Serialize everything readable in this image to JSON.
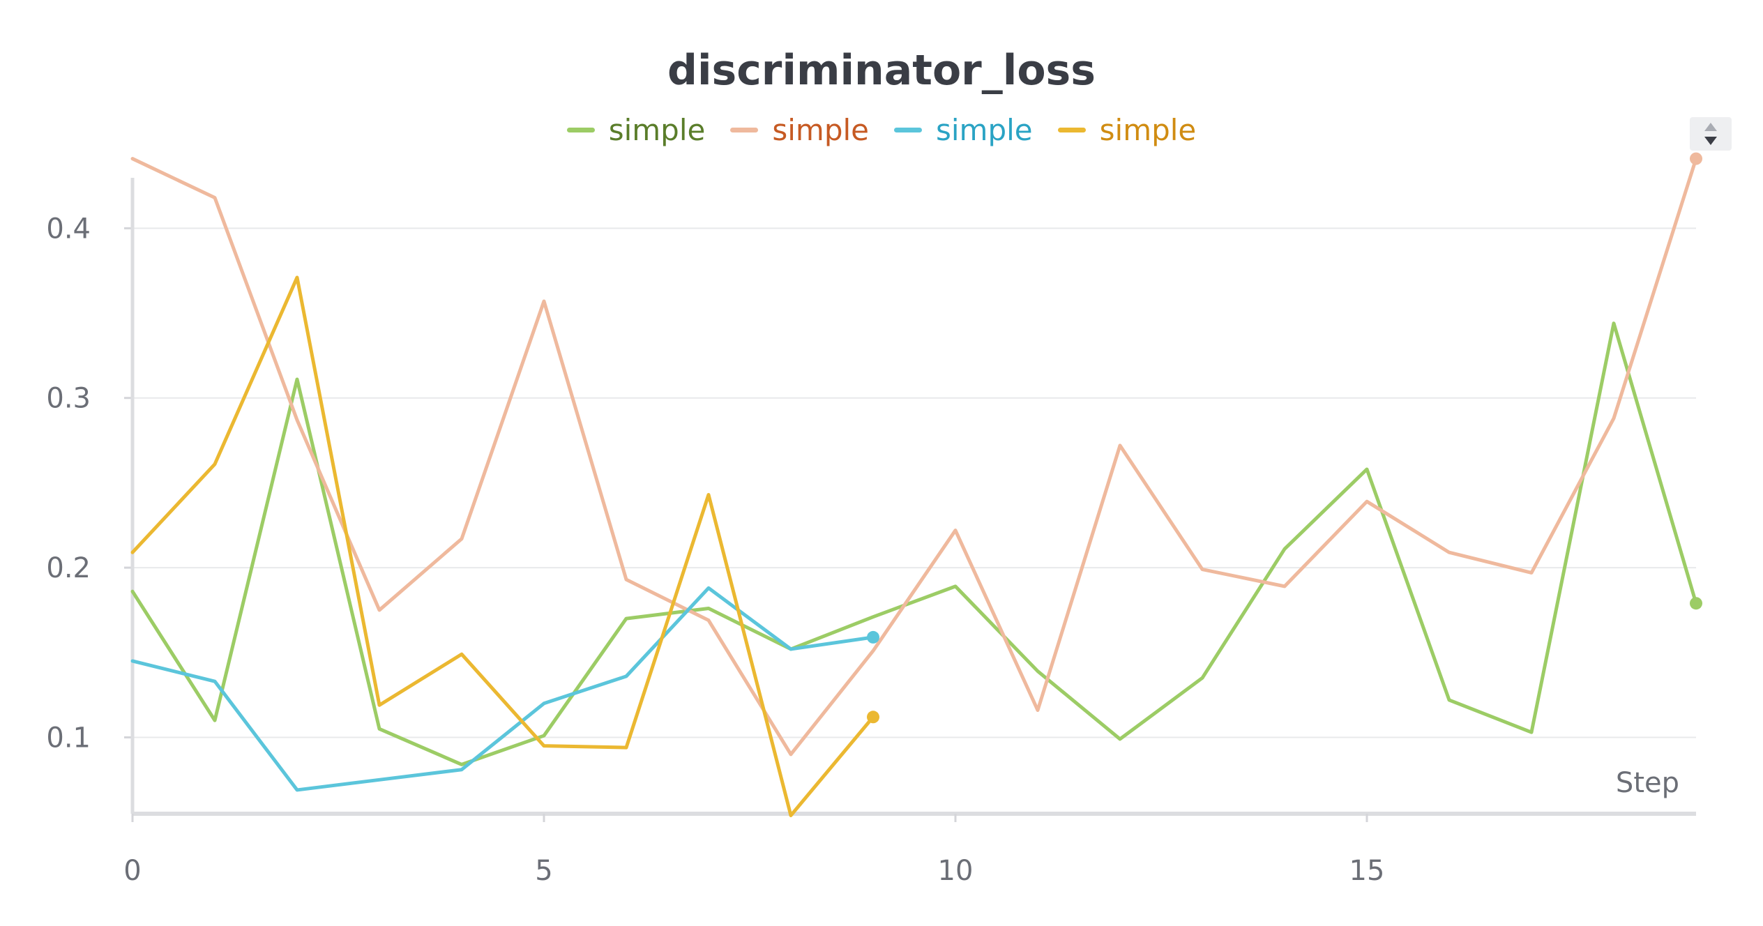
{
  "chart_data": {
    "type": "line",
    "title": "discriminator_loss",
    "xlabel": "Step",
    "ylabel": "",
    "xlim": [
      0,
      19
    ],
    "ylim": [
      0.055,
      0.44
    ],
    "xticks": [
      0,
      5,
      10,
      15
    ],
    "yticks": [
      0.1,
      0.2,
      0.3,
      0.4
    ],
    "xtick_labels": [
      "0",
      "5",
      "10",
      "15"
    ],
    "ytick_labels": [
      "0.1",
      "0.2",
      "0.3",
      "0.4"
    ],
    "grid": true,
    "legend_position": "top-center",
    "series": [
      {
        "name": "simple",
        "color": "#9ccc65",
        "label_color": "#5a7d2a",
        "x": [
          0,
          1,
          2,
          3,
          4,
          5,
          6,
          7,
          8,
          9,
          10,
          11,
          12,
          13,
          14,
          15,
          16,
          17,
          18,
          19
        ],
        "values": [
          0.186,
          0.11,
          0.311,
          0.105,
          0.084,
          0.101,
          0.17,
          0.176,
          0.152,
          0.171,
          0.189,
          0.139,
          0.099,
          0.135,
          0.211,
          0.258,
          0.122,
          0.103,
          0.344,
          0.179
        ]
      },
      {
        "name": "simple",
        "color": "#efb99d",
        "label_color": "#c65a23",
        "x": [
          0,
          1,
          2,
          3,
          4,
          5,
          6,
          7,
          8,
          9,
          10,
          11,
          12,
          13,
          14,
          15,
          16,
          17,
          18,
          19
        ],
        "values": [
          0.441,
          0.418,
          0.287,
          0.175,
          0.217,
          0.357,
          0.193,
          0.169,
          0.09,
          0.151,
          0.222,
          0.116,
          0.272,
          0.199,
          0.189,
          0.239,
          0.209,
          0.197,
          0.288,
          0.441
        ]
      },
      {
        "name": "simple",
        "color": "#5bc5db",
        "label_color": "#2aa3c4",
        "x": [
          0,
          1,
          2,
          3,
          4,
          5,
          6,
          7,
          8,
          9
        ],
        "values": [
          0.145,
          0.133,
          0.069,
          0.075,
          0.081,
          0.12,
          0.136,
          0.188,
          0.152,
          0.159
        ]
      },
      {
        "name": "simple",
        "color": "#ebb831",
        "label_color": "#d08c12",
        "x": [
          0,
          1,
          2,
          3,
          4,
          5,
          6,
          7,
          8,
          9
        ],
        "values": [
          0.209,
          0.261,
          0.371,
          0.119,
          0.149,
          0.095,
          0.094,
          0.243,
          0.054,
          0.112
        ]
      }
    ]
  }
}
